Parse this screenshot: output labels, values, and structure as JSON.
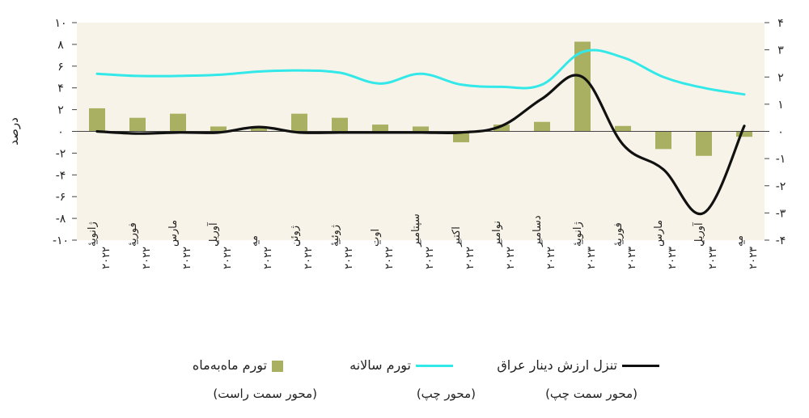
{
  "chart_data": {
    "type": "bar+line",
    "categories": [
      [
        "ژانویهٔ",
        "۲۰۲۲"
      ],
      [
        "فوریهٔ",
        "۲۰۲۲"
      ],
      [
        "مارس",
        "۲۰۲۲"
      ],
      [
        "آوریل",
        "۲۰۲۲"
      ],
      [
        "مه",
        "۲۰۲۲"
      ],
      [
        "ژوئن",
        "۲۰۲۲"
      ],
      [
        "ژوئیهٔ",
        "۲۰۲۲"
      ],
      [
        "اوت",
        "۲۰۲۲"
      ],
      [
        "سپتامبر",
        "۲۰۲۲"
      ],
      [
        "اکتبر",
        "۲۰۲۲"
      ],
      [
        "نوامبر",
        "۲۰۲۲"
      ],
      [
        "دسامبر",
        "۲۰۲۲"
      ],
      [
        "ژانویهٔ",
        "۲۰۲۳"
      ],
      [
        "فوریهٔ",
        "۲۰۲۳"
      ],
      [
        "مارس",
        "۲۰۲۳"
      ],
      [
        "آوریل",
        "۲۰۲۳"
      ],
      [
        "مه",
        "۲۰۲۳"
      ]
    ],
    "ylabel": "درصد",
    "left_axis": {
      "ylim": [
        -10,
        10
      ],
      "ticks": [
        10,
        8,
        6,
        4,
        2,
        0,
        -2,
        -4,
        -6,
        -8,
        -10
      ],
      "tick_labels": [
        "۱۰",
        "۸",
        "۶",
        "۴",
        "۲",
        "۰",
        "-۲",
        "-۴",
        "-۶",
        "-۸",
        "-۱۰"
      ]
    },
    "right_axis": {
      "ylim": [
        -4,
        4
      ],
      "ticks": [
        4,
        3,
        2,
        1,
        0,
        -1,
        -2,
        -3,
        -4
      ],
      "tick_labels": [
        "۴",
        "۳",
        "۲",
        "۱",
        "۰",
        "-۱",
        "-۲",
        "-۳",
        "-۴"
      ]
    },
    "series": [
      {
        "name": "تورم ماه‌به‌ماه",
        "note": "(محور سمت راست)",
        "type": "bar",
        "axis": "right",
        "color": "#a9b061",
        "values": [
          0.85,
          0.5,
          0.65,
          0.18,
          0.18,
          0.65,
          0.5,
          0.25,
          0.18,
          -0.4,
          0.25,
          0.35,
          3.3,
          0.2,
          -0.65,
          -0.9,
          -0.2
        ]
      },
      {
        "name": "تورم سالانه",
        "note": "(محور چپ)",
        "type": "line",
        "axis": "left",
        "color": "#33e8e8",
        "values": [
          5.3,
          5.1,
          5.1,
          5.2,
          5.5,
          5.6,
          5.4,
          4.4,
          5.3,
          4.3,
          4.1,
          4.3,
          7.3,
          6.8,
          5.0,
          4.0,
          3.4
        ]
      },
      {
        "name": "تنزل ارزش دینار عراق",
        "note": "(محور سمت چپ)",
        "type": "line",
        "axis": "left",
        "color": "#111111",
        "values": [
          0.0,
          -0.2,
          -0.1,
          -0.1,
          0.4,
          -0.1,
          -0.1,
          -0.1,
          -0.1,
          -0.1,
          0.5,
          3.0,
          5.0,
          -1.2,
          -3.5,
          -7.5,
          0.5
        ]
      }
    ],
    "grid": false,
    "legend_position": "bottom"
  }
}
